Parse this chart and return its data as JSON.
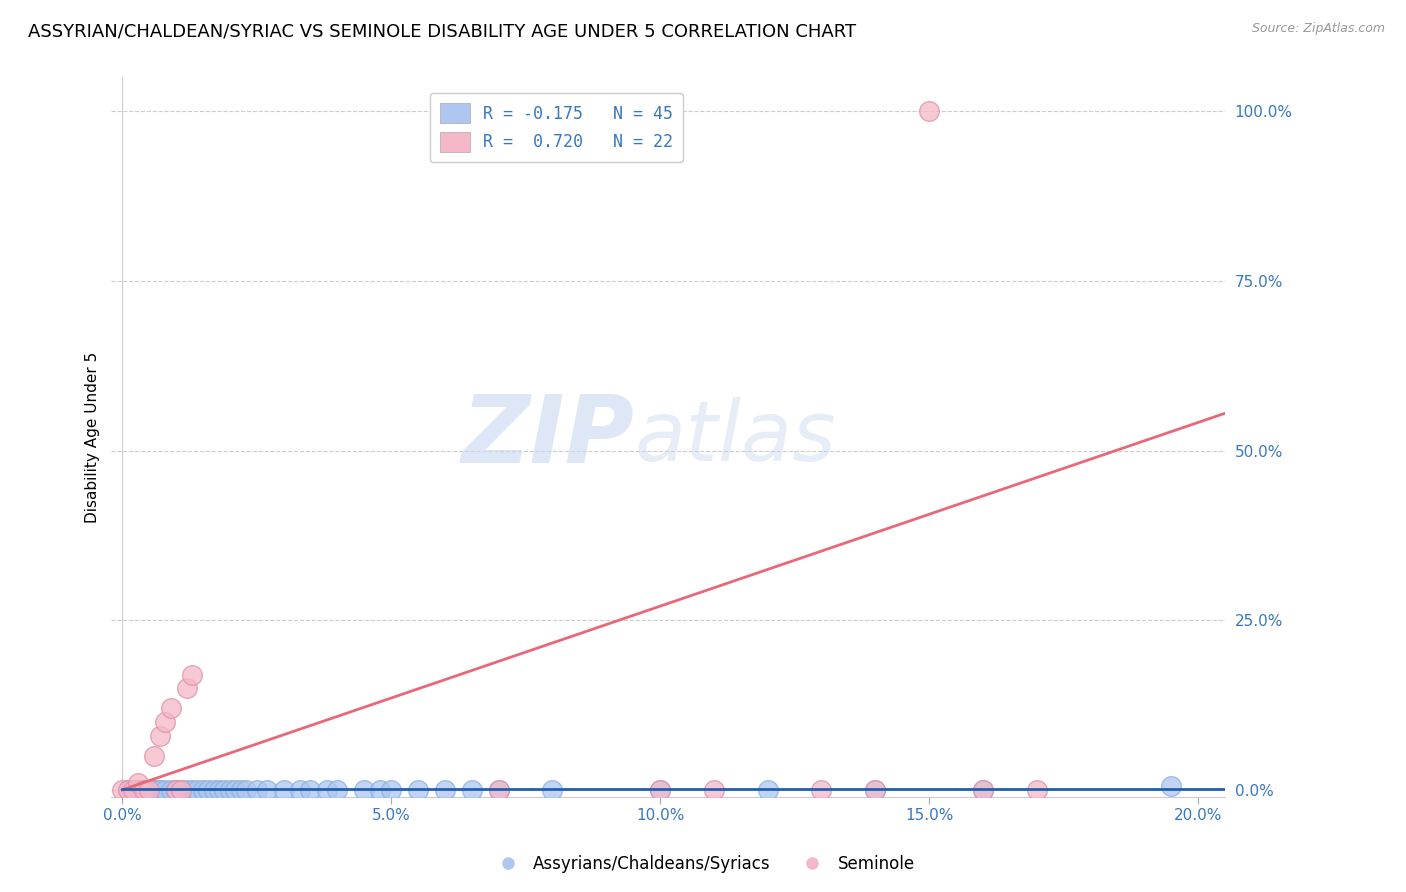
{
  "title": "ASSYRIAN/CHALDEAN/SYRIAC VS SEMINOLE DISABILITY AGE UNDER 5 CORRELATION CHART",
  "source": "Source: ZipAtlas.com",
  "ylabel": "Disability Age Under 5",
  "xticklabels": [
    "0.0%",
    "5.0%",
    "10.0%",
    "15.0%",
    "20.0%"
  ],
  "xticks": [
    0.0,
    0.05,
    0.1,
    0.15,
    0.2
  ],
  "yticklabels": [
    "0.0%",
    "25.0%",
    "50.0%",
    "75.0%",
    "100.0%"
  ],
  "yticks": [
    0.0,
    0.25,
    0.5,
    0.75,
    1.0
  ],
  "xlim": [
    -0.002,
    0.205
  ],
  "ylim": [
    -0.01,
    1.05
  ],
  "legend_entries": [
    {
      "label": "R = -0.175   N = 45",
      "color": "#aec6f0"
    },
    {
      "label": "R =  0.720   N = 22",
      "color": "#f4b8c8"
    }
  ],
  "legend_labels_bottom": [
    "Assyrians/Chaldeans/Syriacs",
    "Seminole"
  ],
  "watermark_zip": "ZIP",
  "watermark_atlas": "atlas",
  "pink_line_color": "#e8687a",
  "blue_line_color": "#2060b0",
  "scatter_blue_color": "#aec6f0",
  "scatter_pink_color": "#f4b8c8",
  "title_fontsize": 13,
  "axis_label_fontsize": 11,
  "tick_fontsize": 11,
  "background_color": "#ffffff",
  "grid_color": "#cccccc",
  "blue_x": [
    0.001,
    0.002,
    0.003,
    0.004,
    0.005,
    0.006,
    0.006,
    0.007,
    0.007,
    0.008,
    0.009,
    0.01,
    0.011,
    0.012,
    0.013,
    0.014,
    0.015,
    0.016,
    0.017,
    0.018,
    0.019,
    0.02,
    0.021,
    0.022,
    0.023,
    0.025,
    0.027,
    0.03,
    0.033,
    0.035,
    0.038,
    0.04,
    0.045,
    0.048,
    0.05,
    0.055,
    0.06,
    0.065,
    0.07,
    0.08,
    0.1,
    0.12,
    0.14,
    0.16,
    0.195
  ],
  "blue_y": [
    0.0,
    0.0,
    0.0,
    0.0,
    0.0,
    0.0,
    0.0,
    0.0,
    0.0,
    0.0,
    0.0,
    0.0,
    0.0,
    0.0,
    0.0,
    0.0,
    0.0,
    0.0,
    0.0,
    0.0,
    0.0,
    0.0,
    0.0,
    0.0,
    0.0,
    0.0,
    0.0,
    0.0,
    0.0,
    0.0,
    0.0,
    0.0,
    0.0,
    0.0,
    0.0,
    0.0,
    0.0,
    0.0,
    0.0,
    0.0,
    0.0,
    0.0,
    0.0,
    0.0,
    0.005
  ],
  "pink_x": [
    0.0,
    0.001,
    0.002,
    0.003,
    0.004,
    0.005,
    0.006,
    0.007,
    0.008,
    0.009,
    0.01,
    0.011,
    0.012,
    0.013,
    0.07,
    0.1,
    0.11,
    0.13,
    0.14,
    0.15,
    0.16,
    0.17
  ],
  "pink_y": [
    0.0,
    0.0,
    0.0,
    0.01,
    0.0,
    0.0,
    0.05,
    0.08,
    0.1,
    0.12,
    0.0,
    0.0,
    0.15,
    0.17,
    0.0,
    0.0,
    0.0,
    0.0,
    0.0,
    1.0,
    0.0,
    0.0
  ],
  "pink_line_x0": 0.0,
  "pink_line_y0": 0.0,
  "pink_line_x1": 0.205,
  "pink_line_y1": 0.555,
  "blue_line_x0": 0.0,
  "blue_line_y0": 0.001,
  "blue_line_x1": 0.205,
  "blue_line_y1": 0.001
}
